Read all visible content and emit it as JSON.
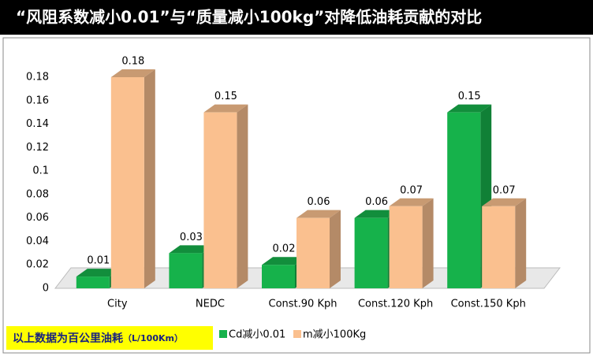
{
  "chart_data": {
    "type": "bar",
    "title": "“风阻系数减小0.01”与“质量减小100kg”对降低油耗贡献的对比",
    "categories": [
      "City",
      "NEDC",
      "Const.90 Kph",
      "Const.120 Kph",
      "Const.150 Kph"
    ],
    "series": [
      {
        "name": "Cd减小0.01",
        "color": "#16b24b",
        "values": [
          0.01,
          0.03,
          0.02,
          0.06,
          0.15
        ]
      },
      {
        "name": "m减小100Kg",
        "color": "#fac08f",
        "values": [
          0.18,
          0.15,
          0.06,
          0.07,
          0.07
        ]
      }
    ],
    "ylim": [
      0,
      0.18
    ],
    "yticks": [
      0,
      0.02,
      0.04,
      0.06,
      0.08,
      0.1,
      0.12,
      0.14,
      0.16,
      0.18
    ],
    "grid": false,
    "note": "以上数据为百公里油耗",
    "note_unit": "（L/100Km）"
  }
}
